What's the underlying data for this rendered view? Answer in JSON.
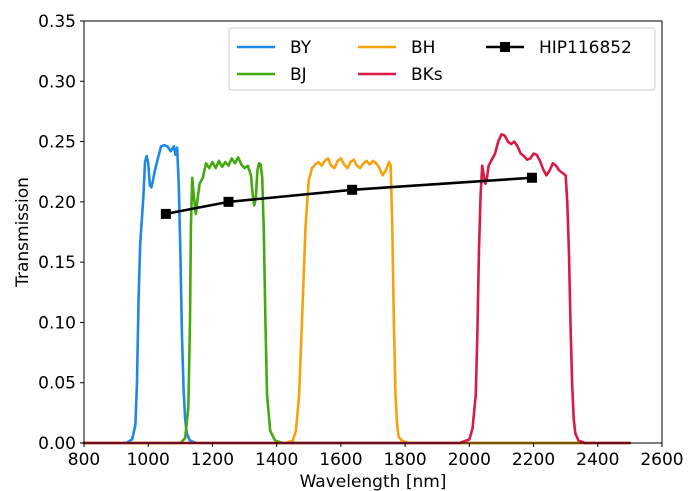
{
  "chart_data": {
    "type": "line",
    "xlabel": "Wavelength [nm]",
    "ylabel": "Transmission",
    "xlim": [
      800,
      2600
    ],
    "ylim": [
      0,
      0.35
    ],
    "xticks": [
      "800",
      "1000",
      "1200",
      "1400",
      "1600",
      "1800",
      "2000",
      "2200",
      "2400",
      "2600"
    ],
    "yticks": [
      "0.00",
      "0.05",
      "0.10",
      "0.15",
      "0.20",
      "0.25",
      "0.30",
      "0.35"
    ],
    "grid": false,
    "legend_position": "top-right",
    "series": [
      {
        "name": "BY",
        "color": "#1e88e5",
        "x": [
          800,
          930,
          950,
          960,
          965,
          970,
          975,
          980,
          985,
          990,
          995,
          1000,
          1005,
          1010,
          1015,
          1020,
          1030,
          1040,
          1050,
          1060,
          1070,
          1080,
          1085,
          1090,
          1095,
          1100,
          1105,
          1110,
          1115,
          1120,
          1130,
          1150,
          1200,
          2500
        ],
        "y": [
          0,
          0,
          0.003,
          0.015,
          0.05,
          0.12,
          0.165,
          0.185,
          0.205,
          0.233,
          0.238,
          0.232,
          0.214,
          0.212,
          0.218,
          0.225,
          0.236,
          0.246,
          0.247,
          0.246,
          0.242,
          0.246,
          0.239,
          0.245,
          0.215,
          0.16,
          0.09,
          0.045,
          0.02,
          0.008,
          0.002,
          0,
          0,
          0
        ]
      },
      {
        "name": "BJ",
        "color": "#43a90f",
        "x": [
          800,
          1100,
          1115,
          1125,
          1130,
          1133,
          1137,
          1142,
          1148,
          1155,
          1160,
          1170,
          1180,
          1190,
          1200,
          1210,
          1220,
          1230,
          1240,
          1250,
          1260,
          1270,
          1280,
          1290,
          1300,
          1310,
          1320,
          1325,
          1330,
          1335,
          1340,
          1345,
          1350,
          1355,
          1360,
          1365,
          1370,
          1380,
          1395,
          1420,
          2500
        ],
        "y": [
          0,
          0,
          0.004,
          0.03,
          0.1,
          0.18,
          0.22,
          0.205,
          0.19,
          0.205,
          0.215,
          0.22,
          0.232,
          0.228,
          0.233,
          0.228,
          0.234,
          0.229,
          0.233,
          0.23,
          0.236,
          0.232,
          0.237,
          0.231,
          0.228,
          0.23,
          0.222,
          0.207,
          0.197,
          0.203,
          0.226,
          0.232,
          0.231,
          0.22,
          0.175,
          0.1,
          0.04,
          0.01,
          0.002,
          0,
          0
        ]
      },
      {
        "name": "BH",
        "color": "#f5a20c",
        "x": [
          800,
          1430,
          1450,
          1460,
          1470,
          1480,
          1490,
          1500,
          1510,
          1520,
          1530,
          1540,
          1550,
          1560,
          1570,
          1580,
          1590,
          1600,
          1610,
          1620,
          1630,
          1640,
          1650,
          1660,
          1670,
          1680,
          1690,
          1700,
          1710,
          1720,
          1730,
          1740,
          1750,
          1755,
          1760,
          1765,
          1770,
          1775,
          1780,
          1790,
          1810,
          1850,
          2500
        ],
        "y": [
          0,
          0,
          0.002,
          0.01,
          0.04,
          0.11,
          0.18,
          0.218,
          0.228,
          0.231,
          0.233,
          0.23,
          0.234,
          0.236,
          0.23,
          0.228,
          0.234,
          0.236,
          0.231,
          0.228,
          0.233,
          0.235,
          0.23,
          0.228,
          0.232,
          0.234,
          0.231,
          0.234,
          0.232,
          0.228,
          0.222,
          0.226,
          0.233,
          0.23,
          0.18,
          0.1,
          0.04,
          0.015,
          0.005,
          0.002,
          0,
          0,
          0
        ]
      },
      {
        "name": "BKs",
        "color": "#d81b45",
        "x": [
          800,
          1970,
          2000,
          2010,
          2020,
          2025,
          2030,
          2035,
          2040,
          2045,
          2050,
          2055,
          2060,
          2070,
          2080,
          2090,
          2100,
          2110,
          2120,
          2130,
          2140,
          2150,
          2160,
          2170,
          2180,
          2190,
          2200,
          2210,
          2220,
          2230,
          2240,
          2250,
          2260,
          2270,
          2280,
          2290,
          2300,
          2305,
          2310,
          2315,
          2320,
          2325,
          2330,
          2340,
          2360,
          2400,
          2500
        ],
        "y": [
          0,
          0,
          0.003,
          0.012,
          0.04,
          0.09,
          0.16,
          0.205,
          0.23,
          0.222,
          0.215,
          0.22,
          0.23,
          0.235,
          0.24,
          0.25,
          0.256,
          0.255,
          0.25,
          0.248,
          0.25,
          0.246,
          0.24,
          0.238,
          0.235,
          0.236,
          0.24,
          0.239,
          0.234,
          0.227,
          0.222,
          0.226,
          0.232,
          0.23,
          0.226,
          0.224,
          0.222,
          0.2,
          0.16,
          0.1,
          0.05,
          0.02,
          0.008,
          0.002,
          0,
          0,
          0
        ]
      },
      {
        "name": "HIP116852",
        "color": "#000000",
        "marker": "square",
        "x": [
          1055,
          1250,
          1635,
          2195
        ],
        "y": [
          0.19,
          0.2,
          0.21,
          0.22
        ]
      }
    ]
  }
}
